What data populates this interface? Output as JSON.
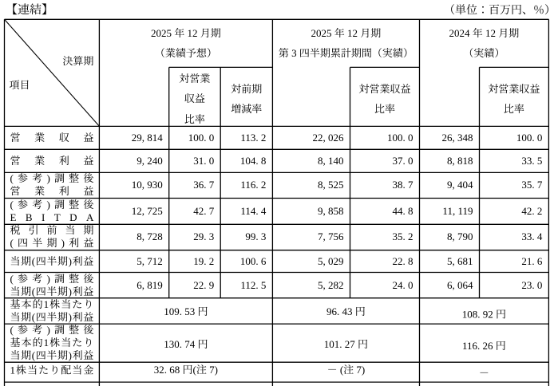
{
  "page": {
    "section_label": "【連結】",
    "unit_note": "（単位：百万円、％）"
  },
  "table": {
    "corner": {
      "top_right_label": "決算期",
      "bottom_left_label": "項目"
    },
    "column_groups": [
      {
        "title": "2025年12月期\n（業績予想）",
        "sub_headers": [
          "対営業\n収益\n比率",
          "対前期\n増減率"
        ]
      },
      {
        "title": "2025年12月期\n第3四半期累計期間（実績）",
        "sub_headers": [
          "対営業収益\n比率"
        ]
      },
      {
        "title": "2024年12月期\n（実績）",
        "sub_headers": [
          "対営業収益\n比率"
        ]
      }
    ],
    "rows": [
      {
        "label": "営業収益",
        "values": [
          "29,814",
          "100.0",
          "113.2",
          "22,026",
          "100.0",
          "26,348",
          "100.0"
        ]
      },
      {
        "label": "営業利益",
        "values": [
          "9,240",
          "31.0",
          "104.8",
          "8,140",
          "37.0",
          "8,818",
          "33.5"
        ]
      },
      {
        "label": "(参考)調整後\n営業利益",
        "values": [
          "10,930",
          "36.7",
          "116.2",
          "8,525",
          "38.7",
          "9,404",
          "35.7"
        ]
      },
      {
        "label": "(参考)調整後\nEBITDA",
        "values": [
          "12,725",
          "42.7",
          "114.4",
          "9,858",
          "44.8",
          "11,119",
          "42.2"
        ]
      },
      {
        "label": "税引前当期\n(四半期)利益",
        "values": [
          "8,728",
          "29.3",
          "99.3",
          "7,756",
          "35.2",
          "8,790",
          "33.4"
        ]
      },
      {
        "label": "当期(四半期)利益",
        "values": [
          "5,712",
          "19.2",
          "100.6",
          "5,029",
          "22.8",
          "5,681",
          "21.6"
        ]
      },
      {
        "label": "(参考)調整後\n当期(四半期)利益",
        "values": [
          "6,819",
          "22.9",
          "112.5",
          "5,282",
          "24.0",
          "6,064",
          "23.0"
        ]
      },
      {
        "label": "基本的1株当たり\n当期(四半期)利益",
        "values": [
          "109.53円",
          "96.43円",
          "108.92円"
        ],
        "merged": true
      },
      {
        "label": "(参考)調整後\n基本的1株当たり\n当期(四半期)利益",
        "values": [
          "130.74円",
          "101.27円",
          "116.26円"
        ],
        "merged": true
      },
      {
        "label": "1株当たり配当金",
        "values": [
          "32.68円(注7)",
          "－(注7)",
          "－"
        ],
        "merged": true
      }
    ]
  }
}
